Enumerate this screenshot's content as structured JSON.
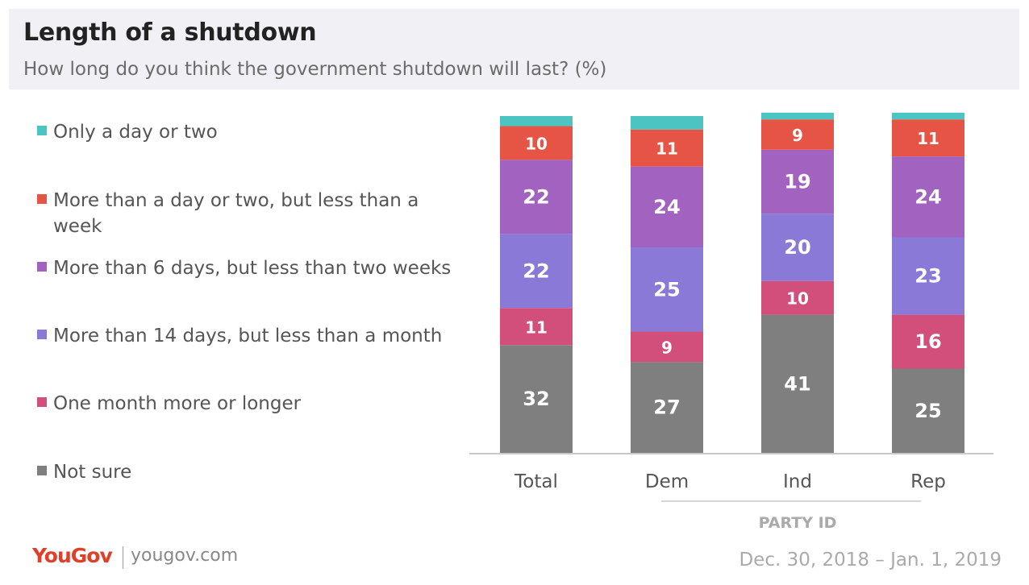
{
  "header": {
    "title": "Length of a shutdown",
    "subtitle": "How long do you think the government shutdown will last? (%)"
  },
  "chart_data": {
    "type": "bar",
    "stacked": true,
    "orientation": "vertical",
    "categories": [
      "Total",
      "Dem",
      "Ind",
      "Rep"
    ],
    "group_label": "PARTY ID",
    "group_categories": [
      "Dem",
      "Ind",
      "Rep"
    ],
    "ylim": [
      0,
      100
    ],
    "grid": false,
    "legend_position": "left",
    "series": [
      {
        "name": "Not sure",
        "color": "#7f7f7f",
        "values": [
          32,
          27,
          41,
          25
        ]
      },
      {
        "name": "One month more or longer",
        "color": "#d24f7c",
        "values": [
          11,
          9,
          10,
          16
        ]
      },
      {
        "name": "More than 14 days, but less than a month",
        "color": "#8a79d6",
        "values": [
          22,
          25,
          20,
          23
        ]
      },
      {
        "name": "More than 6 days, but less than two weeks",
        "color": "#a262bf",
        "values": [
          22,
          24,
          19,
          24
        ]
      },
      {
        "name": "More than a day or two, but less than a week",
        "color": "#e65446",
        "values": [
          10,
          11,
          9,
          11
        ]
      },
      {
        "name": "Only a day or two",
        "color": "#4cc5c2",
        "values": [
          3,
          4,
          2,
          2
        ]
      }
    ],
    "data_labels_shown_for_series": [
      0,
      1,
      2,
      3,
      4
    ]
  },
  "footer": {
    "brand": "YouGov",
    "url": "yougov.com",
    "date_range": "Dec. 30, 2018 – Jan. 1, 2019"
  }
}
